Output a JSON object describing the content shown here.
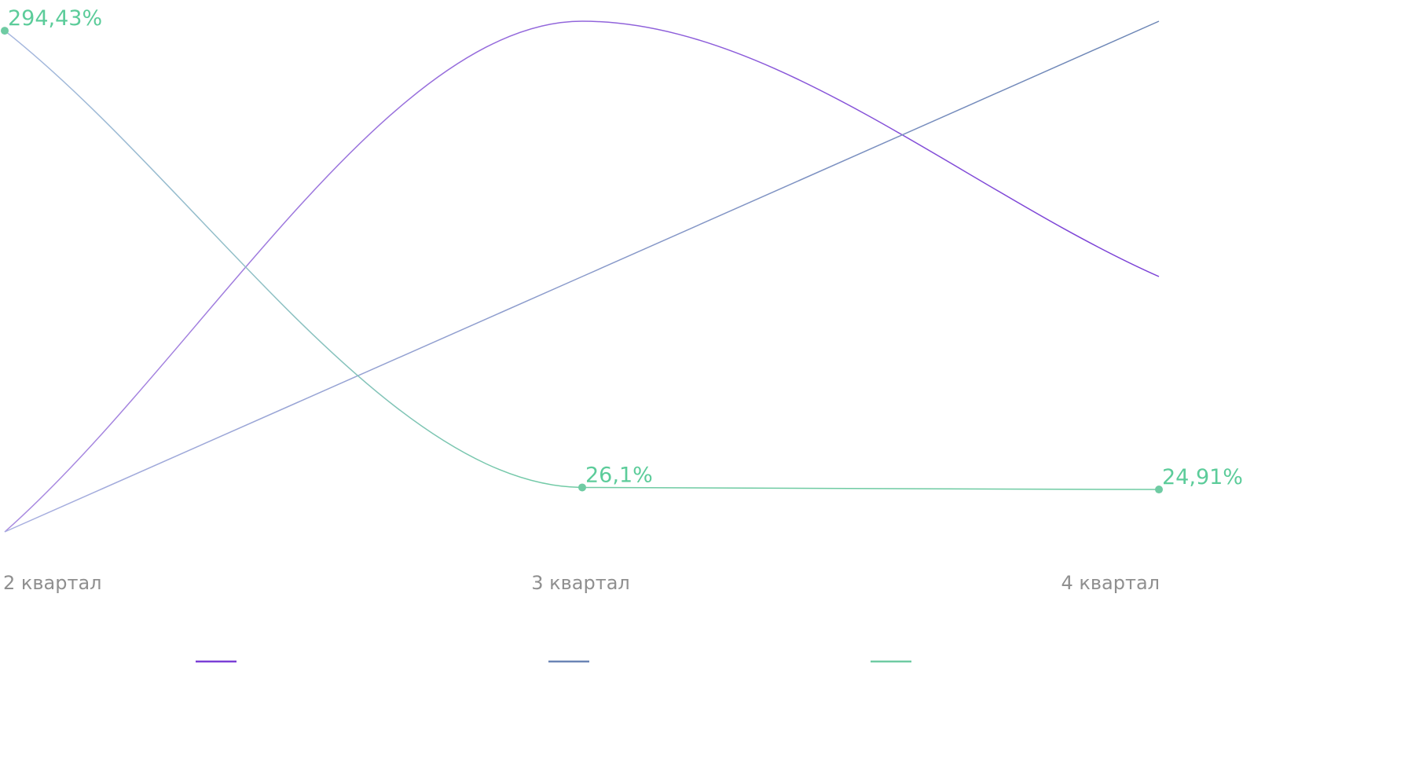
{
  "chart_data": {
    "type": "line",
    "categories": [
      "2 квартал",
      "3 квартал",
      "4 квартал"
    ],
    "ylim": [
      0,
      300
    ],
    "grid": false,
    "legend_placement": "bottom",
    "series": [
      {
        "color": "#7a3fd6",
        "values": [
          0,
          300,
          150
        ]
      },
      {
        "color": "#6b85b5",
        "values": [
          0,
          150,
          300
        ]
      },
      {
        "color": "#6fcba3",
        "values": [
          294.43,
          26.1,
          24.91
        ],
        "labels": [
          "294,43%",
          "26,1%",
          "24,91%"
        ]
      }
    ]
  }
}
